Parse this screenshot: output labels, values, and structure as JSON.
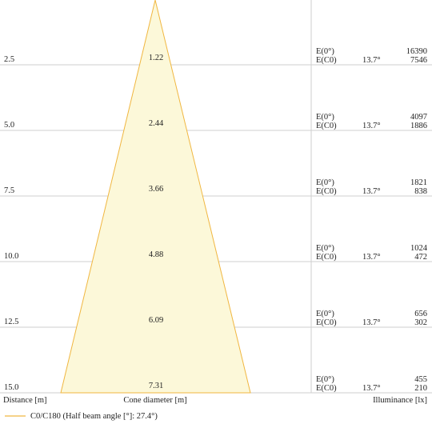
{
  "labels": {
    "distance": "Distance [m]",
    "cone": "Cone diameter [m]",
    "illuminance": "Illuminance [lx]",
    "legend": "C0/C180 (Half beam angle [°]: 27.4°)",
    "e0": "E(0°)",
    "ec0": "E(C0)"
  },
  "colors": {
    "cone_fill": "#fcf8d9",
    "cone_stroke": "#f0b640",
    "grid": "#cfcfcf"
  },
  "rows": [
    {
      "distance": "2.5",
      "diameter": "1.22",
      "angle": "13.7°",
      "e0": "16390",
      "ec0": "7546"
    },
    {
      "distance": "5.0",
      "diameter": "2.44",
      "angle": "13.7°",
      "e0": "4097",
      "ec0": "1886"
    },
    {
      "distance": "7.5",
      "diameter": "3.66",
      "angle": "13.7°",
      "e0": "1821",
      "ec0": "838"
    },
    {
      "distance": "10.0",
      "diameter": "4.88",
      "angle": "13.7°",
      "e0": "1024",
      "ec0": "472"
    },
    {
      "distance": "12.5",
      "diameter": "6.09",
      "angle": "13.7°",
      "e0": "656",
      "ec0": "302"
    },
    {
      "distance": "15.0",
      "diameter": "7.31",
      "angle": "13.7°",
      "e0": "455",
      "ec0": "210"
    }
  ]
}
